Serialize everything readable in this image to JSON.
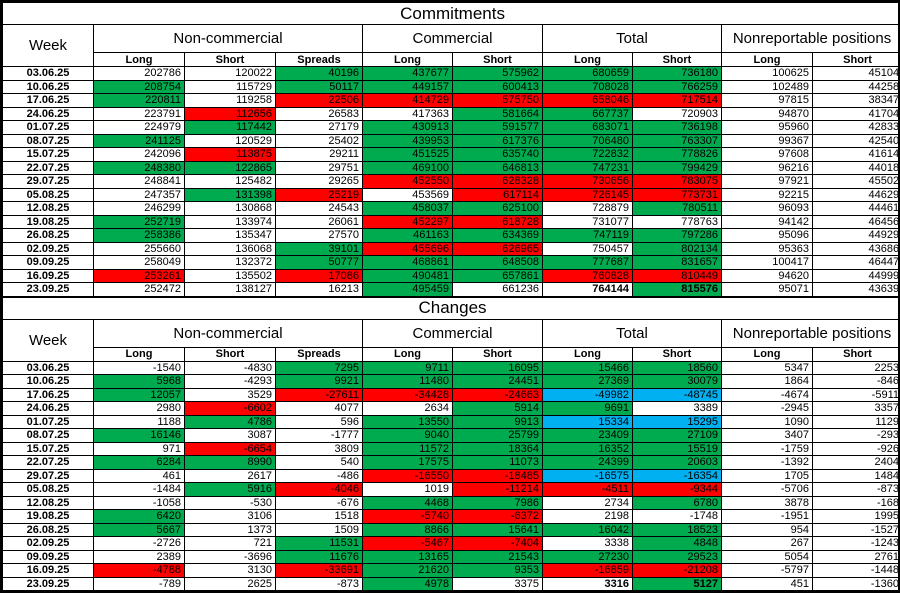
{
  "colors": {
    "g": "#00ab50",
    "r": "#fe0000",
    "b": "#00b0f0"
  },
  "commitments": {
    "title": "Commitments",
    "week_header": "Week",
    "groups": [
      {
        "label": "Non-commercial",
        "cols": [
          "Long",
          "Short",
          "Spreads"
        ]
      },
      {
        "label": "Commercial",
        "cols": [
          "Long",
          "Short"
        ]
      },
      {
        "label": "Total",
        "cols": [
          "Long",
          "Short"
        ]
      },
      {
        "label": "Nonreportable positions",
        "cols": [
          "Long",
          "Short"
        ]
      }
    ],
    "rows": [
      {
        "week": "03.06.25",
        "v": [
          "202786",
          "120022",
          "40196",
          "437677",
          "575962",
          "680659",
          "736180",
          "100625",
          "45104"
        ],
        "c": [
          "",
          "",
          "g",
          "g",
          "g",
          "g",
          "g",
          "",
          ""
        ]
      },
      {
        "week": "10.06.25",
        "v": [
          "208754",
          "115729",
          "50117",
          "449157",
          "600413",
          "708028",
          "766259",
          "102489",
          "44258"
        ],
        "c": [
          "g",
          "",
          "g",
          "g",
          "g",
          "g",
          "g",
          "",
          ""
        ]
      },
      {
        "week": "17.06.25",
        "v": [
          "220811",
          "119258",
          "22506",
          "414729",
          "575750",
          "658046",
          "717514",
          "97815",
          "38347"
        ],
        "c": [
          "g",
          "",
          "r",
          "r",
          "r",
          "r",
          "r",
          "",
          ""
        ]
      },
      {
        "week": "24.06.25",
        "v": [
          "223791",
          "112656",
          "26583",
          "417363",
          "581664",
          "667737",
          "720903",
          "94870",
          "41704"
        ],
        "c": [
          "",
          "r",
          "",
          "",
          "g",
          "g",
          "",
          "",
          ""
        ]
      },
      {
        "week": "01.07.25",
        "v": [
          "224979",
          "117442",
          "27179",
          "430913",
          "591577",
          "683071",
          "736198",
          "95960",
          "42833"
        ],
        "c": [
          "",
          "g",
          "",
          "g",
          "g",
          "g",
          "g",
          "",
          ""
        ]
      },
      {
        "week": "08.07.25",
        "v": [
          "241125",
          "120529",
          "25402",
          "439953",
          "617376",
          "706480",
          "763307",
          "99367",
          "42540"
        ],
        "c": [
          "g",
          "",
          "",
          "g",
          "g",
          "g",
          "g",
          "",
          ""
        ]
      },
      {
        "week": "15.07.25",
        "v": [
          "242096",
          "113875",
          "29211",
          "451525",
          "635740",
          "722832",
          "778826",
          "97608",
          "41614"
        ],
        "c": [
          "",
          "r",
          "",
          "g",
          "g",
          "g",
          "g",
          "",
          ""
        ]
      },
      {
        "week": "22.07.25",
        "v": [
          "248380",
          "122865",
          "29751",
          "469100",
          "646813",
          "747231",
          "799429",
          "96216",
          "44018"
        ],
        "c": [
          "g",
          "g",
          "",
          "g",
          "g",
          "g",
          "g",
          "",
          ""
        ]
      },
      {
        "week": "29.07.25",
        "v": [
          "248841",
          "125482",
          "29265",
          "452550",
          "628328",
          "730656",
          "783075",
          "97921",
          "45502"
        ],
        "c": [
          "",
          "",
          "",
          "r",
          "r",
          "r",
          "r",
          "",
          ""
        ]
      },
      {
        "week": "05.08.25",
        "v": [
          "247357",
          "131398",
          "25219",
          "453569",
          "617114",
          "726145",
          "773731",
          "92215",
          "44629"
        ],
        "c": [
          "",
          "g",
          "r",
          "",
          "r",
          "r",
          "r",
          "",
          ""
        ]
      },
      {
        "week": "12.08.25",
        "v": [
          "246299",
          "130868",
          "24543",
          "458037",
          "625100",
          "728879",
          "780511",
          "96093",
          "44461"
        ],
        "c": [
          "",
          "",
          "",
          "g",
          "g",
          "",
          "g",
          "",
          ""
        ]
      },
      {
        "week": "19.08.25",
        "v": [
          "252719",
          "133974",
          "26061",
          "452297",
          "618728",
          "731077",
          "778763",
          "94142",
          "46456"
        ],
        "c": [
          "g",
          "",
          "",
          "r",
          "r",
          "",
          "",
          "",
          ""
        ]
      },
      {
        "week": "26.08.25",
        "v": [
          "258386",
          "135347",
          "27570",
          "461163",
          "634369",
          "747119",
          "797286",
          "95096",
          "44929"
        ],
        "c": [
          "g",
          "",
          "",
          "g",
          "g",
          "g",
          "g",
          "",
          ""
        ]
      },
      {
        "week": "02.09.25",
        "v": [
          "255660",
          "136068",
          "39101",
          "455696",
          "626965",
          "750457",
          "802134",
          "95363",
          "43686"
        ],
        "c": [
          "",
          "",
          "g",
          "r",
          "r",
          "",
          "g",
          "",
          ""
        ]
      },
      {
        "week": "09.09.25",
        "v": [
          "258049",
          "132372",
          "50777",
          "468861",
          "648508",
          "777687",
          "831657",
          "100417",
          "46447"
        ],
        "c": [
          "",
          "",
          "g",
          "g",
          "g",
          "g",
          "g",
          "",
          ""
        ]
      },
      {
        "week": "16.09.25",
        "v": [
          "253261",
          "135502",
          "17086",
          "490481",
          "657861",
          "760828",
          "810449",
          "94620",
          "44999"
        ],
        "c": [
          "r",
          "",
          "r",
          "g",
          "g",
          "r",
          "r",
          "",
          ""
        ]
      },
      {
        "week": "23.09.25",
        "v": [
          "252472",
          "138127",
          "16213",
          "495459",
          "661236",
          "764144",
          "815576",
          "95071",
          "43639"
        ],
        "c": [
          "",
          "",
          "",
          "g",
          "",
          "",
          "g",
          "",
          ""
        ],
        "b": [
          5,
          6
        ]
      }
    ]
  },
  "changes": {
    "title": "Changes",
    "week_header": "Week",
    "groups": [
      {
        "label": "Non-commercial",
        "cols": [
          "Long",
          "Short",
          "Spreads"
        ]
      },
      {
        "label": "Commercial",
        "cols": [
          "Long",
          "Short"
        ]
      },
      {
        "label": "Total",
        "cols": [
          "Long",
          "Short"
        ]
      },
      {
        "label": "Nonreportable positions",
        "cols": [
          "Long",
          "Short"
        ]
      }
    ],
    "rows": [
      {
        "week": "03.06.25",
        "v": [
          "-1540",
          "-4830",
          "7295",
          "9711",
          "16095",
          "15466",
          "18560",
          "5347",
          "2253"
        ],
        "c": [
          "",
          "",
          "g",
          "g",
          "g",
          "g",
          "g",
          "",
          ""
        ]
      },
      {
        "week": "10.06.25",
        "v": [
          "5968",
          "-4293",
          "9921",
          "11480",
          "24451",
          "27369",
          "30079",
          "1864",
          "-846"
        ],
        "c": [
          "g",
          "",
          "g",
          "g",
          "g",
          "g",
          "g",
          "",
          ""
        ]
      },
      {
        "week": "17.06.25",
        "v": [
          "12057",
          "3529",
          "-27611",
          "-34428",
          "-24663",
          "-49982",
          "-48745",
          "-4674",
          "-5911"
        ],
        "c": [
          "g",
          "",
          "r",
          "r",
          "r",
          "b",
          "b",
          "",
          ""
        ]
      },
      {
        "week": "24.06.25",
        "v": [
          "2980",
          "-6602",
          "4077",
          "2634",
          "5914",
          "9691",
          "3389",
          "-2945",
          "3357"
        ],
        "c": [
          "",
          "r",
          "",
          "",
          "g",
          "g",
          "",
          "",
          ""
        ]
      },
      {
        "week": "01.07.25",
        "v": [
          "1188",
          "4786",
          "596",
          "13550",
          "9913",
          "15334",
          "15295",
          "1090",
          "1129"
        ],
        "c": [
          "",
          "g",
          "",
          "g",
          "g",
          "b",
          "b",
          "",
          ""
        ]
      },
      {
        "week": "08.07.25",
        "v": [
          "16146",
          "3087",
          "-1777",
          "9040",
          "25799",
          "23409",
          "27109",
          "3407",
          "-293"
        ],
        "c": [
          "g",
          "",
          "",
          "g",
          "g",
          "g",
          "g",
          "",
          ""
        ]
      },
      {
        "week": "15.07.25",
        "v": [
          "971",
          "-6654",
          "3809",
          "11572",
          "18364",
          "16352",
          "15519",
          "-1759",
          "-926"
        ],
        "c": [
          "",
          "r",
          "",
          "g",
          "g",
          "g",
          "g",
          "",
          ""
        ]
      },
      {
        "week": "22.07.25",
        "v": [
          "6284",
          "8990",
          "540",
          "17575",
          "11073",
          "24399",
          "20603",
          "-1392",
          "2404"
        ],
        "c": [
          "g",
          "g",
          "",
          "g",
          "g",
          "g",
          "g",
          "",
          ""
        ]
      },
      {
        "week": "29.07.25",
        "v": [
          "461",
          "2617",
          "-486",
          "-16550",
          "-18485",
          "-16575",
          "-16354",
          "1705",
          "1484"
        ],
        "c": [
          "",
          "",
          "",
          "r",
          "r",
          "b",
          "b",
          "",
          ""
        ]
      },
      {
        "week": "05.08.25",
        "v": [
          "-1484",
          "5916",
          "-4046",
          "1019",
          "-11214",
          "-4511",
          "-9344",
          "-5706",
          "-873"
        ],
        "c": [
          "",
          "g",
          "r",
          "",
          "r",
          "r",
          "r",
          "",
          ""
        ]
      },
      {
        "week": "12.08.25",
        "v": [
          "-1058",
          "-530",
          "-676",
          "4468",
          "7986",
          "2734",
          "6780",
          "3878",
          "-168"
        ],
        "c": [
          "",
          "",
          "",
          "g",
          "g",
          "",
          "g",
          "",
          ""
        ]
      },
      {
        "week": "19.08.25",
        "v": [
          "6420",
          "3106",
          "1518",
          "-5740",
          "-6372",
          "2198",
          "-1748",
          "-1951",
          "1995"
        ],
        "c": [
          "g",
          "",
          "",
          "r",
          "r",
          "",
          "",
          "",
          ""
        ]
      },
      {
        "week": "26.08.25",
        "v": [
          "5667",
          "1373",
          "1509",
          "8866",
          "15641",
          "16042",
          "18523",
          "954",
          "-1527"
        ],
        "c": [
          "g",
          "",
          "",
          "g",
          "g",
          "g",
          "g",
          "",
          ""
        ]
      },
      {
        "week": "02.09.25",
        "v": [
          "-2726",
          "721",
          "11531",
          "-5467",
          "-7404",
          "3338",
          "4848",
          "267",
          "-1243"
        ],
        "c": [
          "",
          "",
          "g",
          "r",
          "r",
          "",
          "g",
          "",
          ""
        ]
      },
      {
        "week": "09.09.25",
        "v": [
          "2389",
          "-3696",
          "11676",
          "13165",
          "21543",
          "27230",
          "29523",
          "5054",
          "2761"
        ],
        "c": [
          "",
          "",
          "g",
          "g",
          "g",
          "g",
          "g",
          "",
          ""
        ]
      },
      {
        "week": "16.09.25",
        "v": [
          "-4788",
          "3130",
          "-33691",
          "21620",
          "9353",
          "-16859",
          "-21208",
          "-5797",
          "-1448"
        ],
        "c": [
          "r",
          "",
          "r",
          "g",
          "g",
          "r",
          "r",
          "",
          ""
        ]
      },
      {
        "week": "23.09.25",
        "v": [
          "-789",
          "2625",
          "-873",
          "4978",
          "3375",
          "3316",
          "5127",
          "451",
          "-1360"
        ],
        "c": [
          "",
          "",
          "",
          "g",
          "",
          "",
          "g",
          "",
          ""
        ],
        "b": [
          5,
          6
        ]
      }
    ]
  }
}
